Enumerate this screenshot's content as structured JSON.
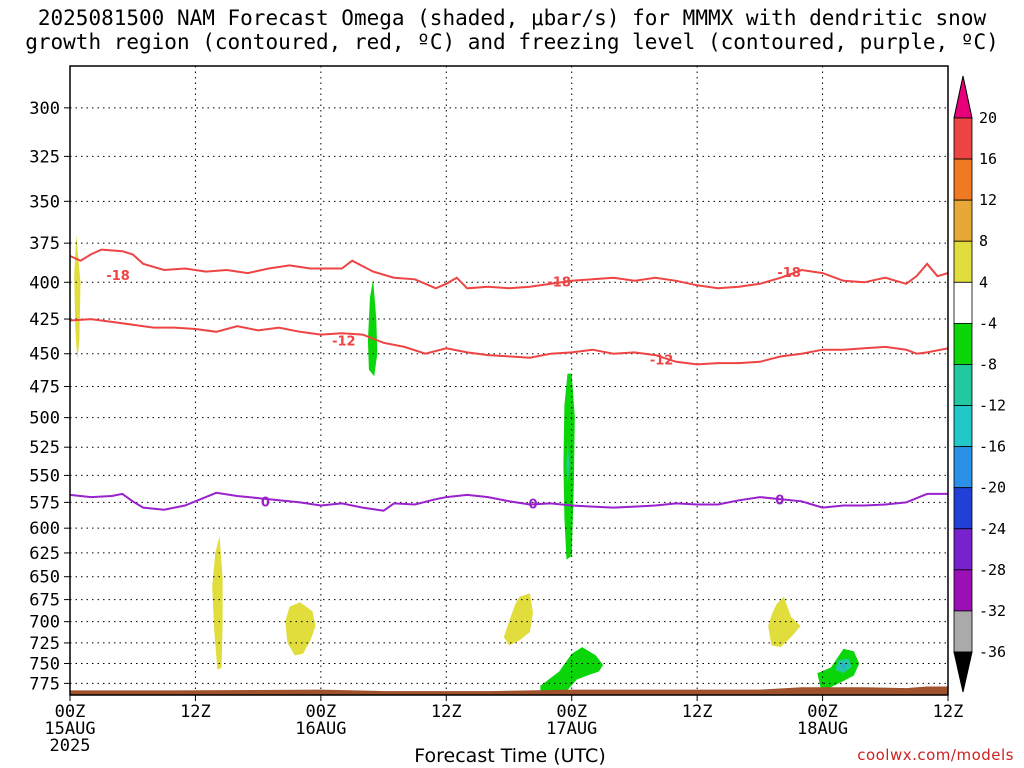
{
  "title": {
    "line1": "2025081500 NAM Forecast Omega (shaded, μbar/s) for MMMX with dendritic snow",
    "line2": "growth region (contoured, red, ºC) and freezing level (contoured, purple, ºC)"
  },
  "xlabel": "Forecast Time (UTC)",
  "credit": "coolwx.com/models",
  "colors": {
    "snow_contour": "#ee4444",
    "freezing_contour": "#9922cc",
    "ground": "#a0522d",
    "frame": "#000000"
  },
  "chart_data": {
    "type": "time-height",
    "title": "2025081500 NAM Forecast Omega (shaded, μbar/s) for MMMX with dendritic snow growth region (contoured, red, ºC) and freezing level (contoured, purple, ºC)",
    "xlabel": "Forecast Time (UTC)",
    "ylabel": "",
    "x_unit": "forecast hour",
    "xlim": [
      0,
      84
    ],
    "y_scale": "log-pressure",
    "ylim": [
      790,
      280
    ],
    "yticks": [
      300,
      325,
      350,
      375,
      400,
      425,
      450,
      475,
      500,
      525,
      550,
      575,
      600,
      625,
      650,
      675,
      700,
      725,
      750,
      775
    ],
    "xticks": [
      {
        "hour": 0,
        "lines": [
          "00Z",
          "15AUG",
          "2025"
        ]
      },
      {
        "hour": 12,
        "lines": [
          "12Z"
        ]
      },
      {
        "hour": 24,
        "lines": [
          "00Z",
          "16AUG"
        ]
      },
      {
        "hour": 36,
        "lines": [
          "12Z"
        ]
      },
      {
        "hour": 48,
        "lines": [
          "00Z",
          "17AUG"
        ]
      },
      {
        "hour": 60,
        "lines": [
          "12Z"
        ]
      },
      {
        "hour": 72,
        "lines": [
          "00Z",
          "18AUG"
        ]
      },
      {
        "hour": 84,
        "lines": [
          "12Z"
        ]
      }
    ],
    "grid": true,
    "contours": [
      {
        "level": -18,
        "label": "-18",
        "color": "#ee4444",
        "label_at": [
          [
            4.6,
            396
          ],
          [
            46.8,
            400
          ],
          [
            68.8,
            394
          ]
        ],
        "points": [
          [
            0,
            383
          ],
          [
            1,
            386
          ],
          [
            2,
            382
          ],
          [
            3,
            379
          ],
          [
            5,
            380
          ],
          [
            6,
            382
          ],
          [
            7,
            388
          ],
          [
            9,
            392
          ],
          [
            11,
            391
          ],
          [
            13,
            393
          ],
          [
            15,
            392
          ],
          [
            17,
            394
          ],
          [
            19,
            391
          ],
          [
            21,
            389
          ],
          [
            23,
            391
          ],
          [
            24,
            391
          ],
          [
            26,
            391
          ],
          [
            27,
            386
          ],
          [
            29,
            393
          ],
          [
            31,
            397
          ],
          [
            33,
            398
          ],
          [
            35,
            404
          ],
          [
            36,
            401
          ],
          [
            37,
            397
          ],
          [
            38,
            404
          ],
          [
            40,
            403
          ],
          [
            42,
            404
          ],
          [
            44,
            403
          ],
          [
            46,
            401
          ],
          [
            48,
            399
          ],
          [
            50,
            398
          ],
          [
            52,
            397
          ],
          [
            54,
            399
          ],
          [
            56,
            397
          ],
          [
            58,
            399
          ],
          [
            60,
            402
          ],
          [
            62,
            404
          ],
          [
            64,
            403
          ],
          [
            66,
            401
          ],
          [
            68,
            397
          ],
          [
            70,
            392
          ],
          [
            72,
            394
          ],
          [
            74,
            399
          ],
          [
            76,
            400
          ],
          [
            78,
            397
          ],
          [
            80,
            401
          ],
          [
            81,
            396
          ],
          [
            82,
            388
          ],
          [
            83,
            396
          ],
          [
            84,
            394
          ]
        ]
      },
      {
        "level": -12,
        "label": "-12",
        "color": "#ee4444",
        "label_at": [
          [
            26.2,
            441
          ],
          [
            56.6,
            455
          ]
        ],
        "points": [
          [
            0,
            426
          ],
          [
            2,
            425
          ],
          [
            4,
            427
          ],
          [
            6,
            429
          ],
          [
            8,
            431
          ],
          [
            10,
            431
          ],
          [
            12,
            432
          ],
          [
            14,
            434
          ],
          [
            16,
            430
          ],
          [
            18,
            433
          ],
          [
            20,
            431
          ],
          [
            22,
            434
          ],
          [
            24,
            436
          ],
          [
            26,
            435
          ],
          [
            28,
            436
          ],
          [
            30,
            442
          ],
          [
            32,
            445
          ],
          [
            34,
            450
          ],
          [
            36,
            446
          ],
          [
            38,
            449
          ],
          [
            40,
            451
          ],
          [
            42,
            452
          ],
          [
            44,
            453
          ],
          [
            46,
            450
          ],
          [
            48,
            449
          ],
          [
            50,
            447
          ],
          [
            52,
            450
          ],
          [
            54,
            449
          ],
          [
            56,
            451
          ],
          [
            58,
            456
          ],
          [
            60,
            458
          ],
          [
            62,
            457
          ],
          [
            64,
            457
          ],
          [
            66,
            456
          ],
          [
            68,
            452
          ],
          [
            70,
            450
          ],
          [
            72,
            447
          ],
          [
            74,
            447
          ],
          [
            76,
            446
          ],
          [
            78,
            445
          ],
          [
            80,
            447
          ],
          [
            81,
            450
          ],
          [
            82,
            449
          ],
          [
            84,
            446
          ]
        ]
      },
      {
        "level": 0,
        "label": "0",
        "color": "#9922cc",
        "label_at": [
          [
            18.7,
            575
          ],
          [
            44.3,
            577
          ],
          [
            67.9,
            573
          ]
        ],
        "points": [
          [
            0,
            568
          ],
          [
            2,
            570
          ],
          [
            4,
            569
          ],
          [
            5,
            567
          ],
          [
            6,
            574
          ],
          [
            7,
            580
          ],
          [
            9,
            582
          ],
          [
            11,
            578
          ],
          [
            14,
            566
          ],
          [
            16,
            569
          ],
          [
            18,
            571
          ],
          [
            20,
            573
          ],
          [
            22,
            575
          ],
          [
            24,
            578
          ],
          [
            26,
            576
          ],
          [
            28,
            580
          ],
          [
            30,
            583
          ],
          [
            31,
            576
          ],
          [
            33,
            577
          ],
          [
            35,
            572
          ],
          [
            36,
            570
          ],
          [
            38,
            568
          ],
          [
            40,
            570
          ],
          [
            42,
            574
          ],
          [
            44,
            577
          ],
          [
            46,
            576
          ],
          [
            48,
            578
          ],
          [
            50,
            579
          ],
          [
            52,
            580
          ],
          [
            54,
            579
          ],
          [
            56,
            578
          ],
          [
            58,
            576
          ],
          [
            60,
            577
          ],
          [
            62,
            577
          ],
          [
            64,
            573
          ],
          [
            66,
            570
          ],
          [
            68,
            572
          ],
          [
            70,
            574
          ],
          [
            71,
            577
          ],
          [
            72,
            580
          ],
          [
            74,
            578
          ],
          [
            76,
            578
          ],
          [
            78,
            577
          ],
          [
            80,
            575
          ],
          [
            82,
            567
          ],
          [
            84,
            567
          ]
        ]
      }
    ],
    "omega_regions": [
      {
        "value_range": [
          4,
          8
        ],
        "color": "#e0dd3c",
        "points": [
          [
            0.6,
            370
          ],
          [
            1.0,
            400
          ],
          [
            0.9,
            440
          ],
          [
            0.7,
            455
          ],
          [
            0.5,
            430
          ],
          [
            0.4,
            395
          ]
        ]
      },
      {
        "value_range": [
          -8,
          -4
        ],
        "color": "#0ad60a",
        "points": [
          [
            29.0,
            398
          ],
          [
            29.3,
            425
          ],
          [
            29.4,
            450
          ],
          [
            29.1,
            467
          ],
          [
            28.6,
            462
          ],
          [
            28.5,
            440
          ],
          [
            28.7,
            410
          ]
        ]
      },
      {
        "value_range": [
          -8,
          -4
        ],
        "color": "#0ad60a",
        "points": [
          [
            48.0,
            465
          ],
          [
            48.3,
            500
          ],
          [
            48.2,
            560
          ],
          [
            48.0,
            628
          ],
          [
            47.5,
            632
          ],
          [
            47.3,
            590
          ],
          [
            47.2,
            540
          ],
          [
            47.3,
            490
          ],
          [
            47.6,
            465
          ]
        ]
      },
      {
        "value_range": [
          -12,
          -8
        ],
        "color": "#22c8a0",
        "points": [
          [
            47.6,
            520
          ],
          [
            47.8,
            540
          ],
          [
            47.6,
            560
          ],
          [
            47.5,
            540
          ]
        ]
      },
      {
        "value_range": [
          4,
          8
        ],
        "color": "#e0dd3c",
        "points": [
          [
            14.3,
            608
          ],
          [
            14.6,
            650
          ],
          [
            14.6,
            700
          ],
          [
            14.5,
            755
          ],
          [
            14.1,
            758
          ],
          [
            13.8,
            710
          ],
          [
            13.6,
            660
          ],
          [
            13.9,
            625
          ]
        ]
      },
      {
        "value_range": [
          4,
          8
        ],
        "color": "#e0dd3c",
        "points": [
          [
            22.0,
            678
          ],
          [
            23.2,
            688
          ],
          [
            23.5,
            705
          ],
          [
            23.0,
            722
          ],
          [
            22.3,
            738
          ],
          [
            21.5,
            740
          ],
          [
            20.8,
            725
          ],
          [
            20.6,
            700
          ],
          [
            21.0,
            683
          ]
        ]
      },
      {
        "value_range": [
          4,
          8
        ],
        "color": "#e0dd3c",
        "points": [
          [
            43.0,
            672
          ],
          [
            44.0,
            668
          ],
          [
            44.3,
            690
          ],
          [
            44.0,
            712
          ],
          [
            43.0,
            722
          ],
          [
            42.0,
            728
          ],
          [
            41.5,
            718
          ],
          [
            42.0,
            700
          ],
          [
            42.6,
            680
          ]
        ]
      },
      {
        "value_range": [
          4,
          8
        ],
        "color": "#e0dd3c",
        "points": [
          [
            67.6,
            680
          ],
          [
            68.3,
            672
          ],
          [
            69.0,
            695
          ],
          [
            69.9,
            705
          ],
          [
            69.0,
            718
          ],
          [
            68.0,
            730
          ],
          [
            67.1,
            728
          ],
          [
            66.8,
            705
          ],
          [
            67.2,
            690
          ]
        ]
      },
      {
        "value_range": [
          -8,
          -4
        ],
        "color": "#0ad60a",
        "points": [
          [
            45.0,
            778
          ],
          [
            46.8,
            760
          ],
          [
            48.0,
            738
          ],
          [
            49.0,
            730
          ],
          [
            50.3,
            740
          ],
          [
            51.0,
            752
          ],
          [
            50.6,
            760
          ],
          [
            49.5,
            765
          ],
          [
            48.5,
            770
          ],
          [
            47.5,
            785
          ],
          [
            46.0,
            790
          ],
          [
            45.0,
            788
          ]
        ]
      },
      {
        "value_range": [
          -8,
          -4
        ],
        "color": "#0ad60a",
        "points": [
          [
            71.5,
            762
          ],
          [
            72.8,
            755
          ],
          [
            74.0,
            732
          ],
          [
            75.0,
            735
          ],
          [
            75.5,
            750
          ],
          [
            75.0,
            765
          ],
          [
            74.0,
            772
          ],
          [
            72.5,
            782
          ],
          [
            71.8,
            780
          ]
        ]
      },
      {
        "value_range": [
          -12,
          -8
        ],
        "color": "#22c8a0",
        "points": [
          [
            73.5,
            746
          ],
          [
            74.5,
            744
          ],
          [
            74.8,
            754
          ],
          [
            74.0,
            762
          ],
          [
            73.2,
            758
          ]
        ]
      },
      {
        "value_range": [
          -16,
          -12
        ],
        "color": "#2ab0d0",
        "points": [
          [
            73.8,
            750
          ],
          [
            74.3,
            750
          ],
          [
            74.2,
            756
          ],
          [
            73.8,
            756
          ]
        ]
      }
    ],
    "ground": {
      "color": "#a0522d",
      "points": [
        [
          0,
          784
        ],
        [
          10,
          784
        ],
        [
          24,
          783
        ],
        [
          30,
          785
        ],
        [
          40,
          785
        ],
        [
          48,
          783
        ],
        [
          60,
          783
        ],
        [
          66,
          783
        ],
        [
          70,
          780
        ],
        [
          76,
          780
        ],
        [
          80,
          781
        ],
        [
          82,
          779
        ],
        [
          84,
          779
        ]
      ]
    },
    "colorbar": {
      "ticks": [
        "20",
        "16",
        "12",
        "8",
        "4",
        "-4",
        "-8",
        "-12",
        "-16",
        "-20",
        "-24",
        "-28",
        "-32",
        "-36"
      ],
      "colors": [
        "#ee4444",
        "#f07a22",
        "#e8a838",
        "#e0dd3c",
        "#ffffff",
        "#0ad60a",
        "#22c8a0",
        "#22c8c8",
        "#2a90e8",
        "#2040d8",
        "#7722cc",
        "#9a10b4",
        "#aaaaaa"
      ],
      "top_triangle": "#e8007a",
      "bottom_triangle": "#000000"
    }
  }
}
